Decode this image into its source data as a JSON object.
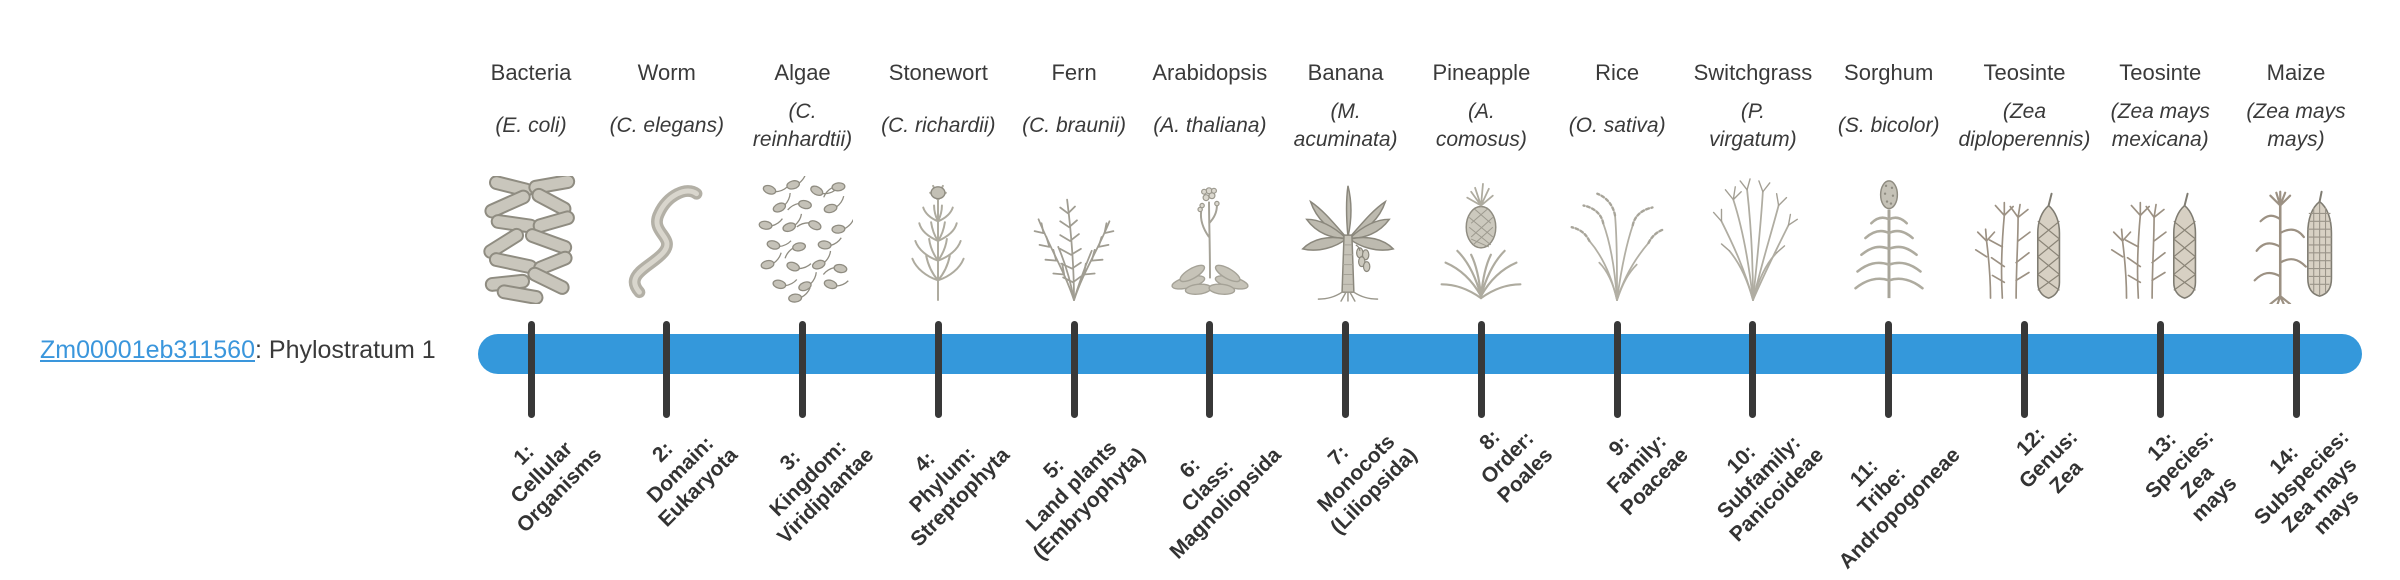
{
  "gene_label": {
    "link_text": "Zm00001eb311560",
    "stratum_text": ": Phylostratum 1",
    "link_color": "#3a96dc"
  },
  "timeline": {
    "bar_color": "#3498db",
    "tick_color": "#383838",
    "tick_count": 14
  },
  "organisms": [
    {
      "common": "Bacteria",
      "scientific": "(E. coli)",
      "icon": "bacteria-icon",
      "stratum_label": "1:\nCellular\nOrganisms"
    },
    {
      "common": "Worm",
      "scientific": "(C. elegans)",
      "icon": "worm-icon",
      "stratum_label": "2:\nDomain:\nEukaryota"
    },
    {
      "common": "Algae",
      "scientific": "(C.\nreinhardtii)",
      "icon": "algae-icon",
      "stratum_label": "3:\nKingdom:\nViridiplantae"
    },
    {
      "common": "Stonewort",
      "scientific": "(C. richardii)",
      "icon": "stonewort-icon",
      "stratum_label": "4:\nPhylum:\nStreptophyta"
    },
    {
      "common": "Fern",
      "scientific": "(C. braunii)",
      "icon": "fern-icon",
      "stratum_label": "5:\nLand plants\n(Embryophyta)"
    },
    {
      "common": "Arabidopsis",
      "scientific": "(A. thaliana)",
      "icon": "arabidopsis-icon",
      "stratum_label": "6:\nClass:\nMagnoliopsida"
    },
    {
      "common": "Banana",
      "scientific": "(M.\nacuminata)",
      "icon": "banana-icon",
      "stratum_label": "7:\nMonocots\n(Liliopsida)"
    },
    {
      "common": "Pineapple",
      "scientific": "(A.\ncomosus)",
      "icon": "pineapple-icon",
      "stratum_label": "8:\nOrder:\nPoales"
    },
    {
      "common": "Rice",
      "scientific": "(O. sativa)",
      "icon": "rice-icon",
      "stratum_label": "9:\nFamily:\nPoaceae"
    },
    {
      "common": "Switchgrass",
      "scientific": "(P.\nvirgatum)",
      "icon": "switchgrass-icon",
      "stratum_label": "10:\nSubfamily:\nPanicoideae"
    },
    {
      "common": "Sorghum",
      "scientific": "(S. bicolor)",
      "icon": "sorghum-icon",
      "stratum_label": "11:\nTribe:\nAndropogoneae"
    },
    {
      "common": "Teosinte",
      "scientific": "(Zea\ndiploperennis)",
      "icon": "teosinte-icon",
      "stratum_label": "12:\nGenus:\nZea"
    },
    {
      "common": "Teosinte",
      "scientific": "(Zea mays\nmexicana)",
      "icon": "teosinte-icon",
      "stratum_label": "13:\nSpecies:\nZea\nmays"
    },
    {
      "common": "Maize",
      "scientific": "(Zea mays\nmays)",
      "icon": "maize-icon",
      "stratum_label": "14:\nSubspecies:\nZea mays\nmays"
    }
  ]
}
